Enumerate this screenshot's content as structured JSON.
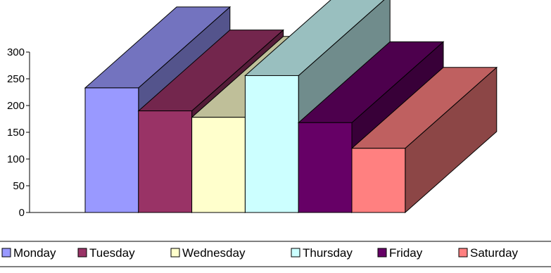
{
  "chart_data": {
    "type": "bar",
    "variant": "3d-column",
    "title": "",
    "xlabel": "",
    "ylabel": "",
    "categories": [
      "Monday",
      "Tuesday",
      "Wednesday",
      "Thursday",
      "Friday",
      "Saturday"
    ],
    "values": [
      233,
      190,
      178,
      256,
      168,
      120
    ],
    "ylim": [
      0,
      300
    ],
    "yticks": [
      "0",
      "50",
      "100",
      "150",
      "200",
      "250",
      "300"
    ],
    "grid": false,
    "legend_position": "bottom",
    "series": [
      {
        "name": "Monday",
        "value": 233,
        "color": "#9999ff"
      },
      {
        "name": "Tuesday",
        "value": 190,
        "color": "#993366"
      },
      {
        "name": "Wednesday",
        "value": 178,
        "color": "#ffffcc"
      },
      {
        "name": "Thursday",
        "value": 256,
        "color": "#ccffff"
      },
      {
        "name": "Friday",
        "value": 168,
        "color": "#660066"
      },
      {
        "name": "Saturday",
        "value": 120,
        "color": "#ff8080"
      }
    ]
  }
}
